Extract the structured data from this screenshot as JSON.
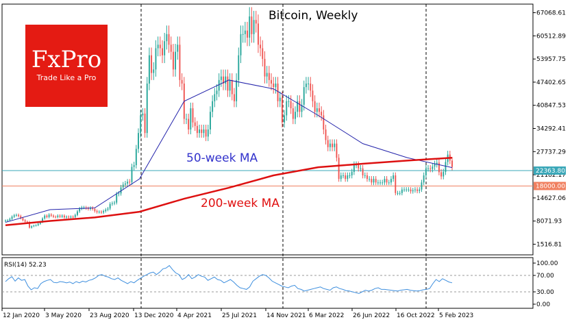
{
  "chart_data": [
    {
      "type": "candlestick",
      "title": "Bitcoin, Weekly",
      "y_ticks": [
        "67068.61",
        "60512.89",
        "53957.75",
        "47402.65",
        "40847.53",
        "34292.41",
        "27737.29",
        "21182.17",
        "14627.06",
        "8071.93",
        "1516.81"
      ],
      "ylim": [
        -1500,
        69500
      ],
      "x_ticks": [
        "12 Jan 2020",
        "3 May 2020",
        "23 Aug 2020",
        "13 Dec 2020",
        "4 Apr 2021",
        "25 Jul 2021",
        "14 Nov 2021",
        "6 Mar 2022",
        "26 Jun 2022",
        "16 Oct 2022",
        "5 Feb 2023"
      ],
      "price_tags": [
        {
          "label": "22363.80",
          "value": 22364,
          "color": "#3aa7b8"
        },
        {
          "label": "18000.00",
          "value": 18000,
          "color": "#f08060"
        }
      ],
      "annotations": [
        {
          "text": "50-week MA",
          "color": "#3333cc"
        },
        {
          "text": "200-week MA",
          "color": "#e01010"
        }
      ],
      "close": [
        8200,
        8300,
        8700,
        9300,
        9700,
        9800,
        9500,
        8900,
        8300,
        7900,
        7800,
        6200,
        6600,
        6800,
        6900,
        7300,
        7800,
        8800,
        9600,
        9200,
        9900,
        9600,
        9300,
        9200,
        9600,
        9300,
        9600,
        9100,
        9300,
        9100,
        9300,
        9200,
        9800,
        10800,
        11600,
        11900,
        11900,
        11700,
        11500,
        11800,
        11500,
        10900,
        10600,
        10700,
        10500,
        10900,
        11300,
        11600,
        12900,
        13100,
        13300,
        15700,
        15900,
        17600,
        18400,
        18700,
        19200,
        19100,
        23400,
        23900,
        28500,
        33000,
        38000,
        38500,
        33000,
        47000,
        55000,
        50000,
        51000,
        57000,
        58000,
        57000,
        55000,
        59000,
        61000,
        58000,
        56000,
        51000,
        56000,
        58000,
        48000,
        47000,
        37000,
        37000,
        34000,
        40000,
        36000,
        35000,
        33000,
        34000,
        33000,
        34000,
        32000,
        34000,
        39000,
        42000,
        44000,
        45000,
        48000,
        49000,
        47000,
        49000,
        45000,
        48000,
        44000,
        42000,
        48000,
        55000,
        61000,
        61000,
        62000,
        60000,
        66000,
        61000,
        65000,
        64000,
        58000,
        57000,
        54000,
        49000,
        50000,
        48000,
        47000,
        46000,
        47000,
        42000,
        43000,
        36000,
        38000,
        42000,
        42000,
        40000,
        37000,
        39000,
        42000,
        39000,
        41000,
        46000,
        47000,
        47000,
        45000,
        42000,
        39000,
        40000,
        39000,
        38000,
        34000,
        31000,
        29000,
        30000,
        29000,
        30000,
        26000,
        20000,
        21000,
        21000,
        20000,
        21000,
        21000,
        22000,
        24000,
        24000,
        23000,
        23000,
        21000,
        21000,
        20000,
        20000,
        19000,
        20000,
        19000,
        19000,
        19000,
        19000,
        20000,
        19000,
        19000,
        20000,
        21000,
        16000,
        16000,
        16000,
        17000,
        17000,
        17000,
        17000,
        16500,
        16800,
        17000,
        16600,
        17000,
        19000,
        21000,
        23000,
        23000,
        22800,
        23500,
        24200,
        24600,
        21900,
        20700,
        22000,
        24800,
        26900,
        25200,
        23400
      ],
      "ma50": [
        7700,
        11300,
        11800,
        20000,
        42000,
        48000,
        45500,
        38000,
        30000,
        26000,
        23200
      ],
      "ma200": [
        6900,
        8100,
        9100,
        10700,
        14400,
        17500,
        21000,
        23300,
        24300,
        25200,
        26000
      ],
      "rsi": {
        "label": "RSI(14) 52.23",
        "y_ticks": [
          "100.00",
          "70.00",
          "30.00",
          "0.00"
        ],
        "levels": [
          70,
          30
        ],
        "values": [
          55,
          62,
          67,
          56,
          64,
          58,
          60,
          44,
          35,
          40,
          38,
          50,
          55,
          58,
          60,
          53,
          52,
          55,
          54,
          52,
          54,
          50,
          55,
          52,
          56,
          54,
          58,
          60,
          64,
          70,
          72,
          68,
          66,
          62,
          60,
          64,
          58,
          54,
          50,
          55,
          52,
          58,
          63,
          68,
          72,
          76,
          78,
          72,
          78,
          86,
          88,
          94,
          84,
          76,
          72,
          60,
          64,
          72,
          62,
          66,
          72,
          68,
          66,
          58,
          62,
          66,
          60,
          58,
          52,
          56,
          60,
          54,
          46,
          40,
          38,
          36,
          42,
          56,
          62,
          68,
          72,
          70,
          64,
          56,
          52,
          48,
          44,
          42,
          40,
          44,
          46,
          38,
          36,
          32,
          34,
          36,
          38,
          40,
          42,
          38,
          36,
          34,
          40,
          42,
          38,
          36,
          33,
          32,
          30,
          28,
          26,
          30,
          34,
          32,
          34,
          38,
          40,
          36,
          36,
          35,
          34,
          33,
          32,
          34,
          35,
          36,
          34,
          33,
          32,
          33,
          35,
          36,
          38,
          50,
          60,
          55,
          62,
          58,
          54,
          52
        ]
      }
    }
  ],
  "branding": {
    "name": "FxPro",
    "tagline": "Trade Like a Pro"
  }
}
